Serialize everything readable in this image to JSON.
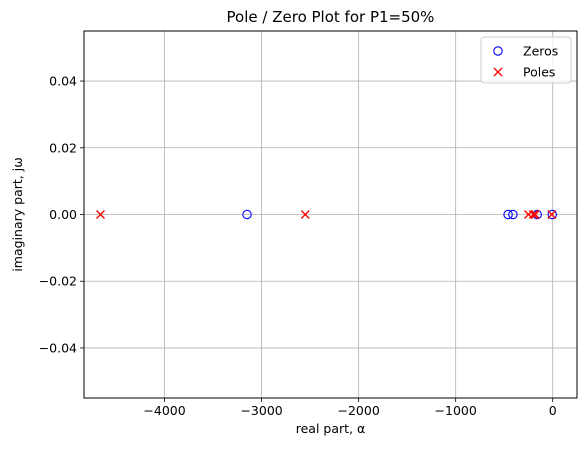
{
  "chart_data": {
    "type": "scatter",
    "title": "Pole / Zero Plot for P1=50%",
    "xlabel": "real part, α",
    "ylabel": "imaginary part, jω",
    "xlim": [
      -4830,
      250
    ],
    "ylim": [
      -0.055,
      0.055
    ],
    "x_ticks": [
      -4000,
      -3000,
      -2000,
      -1000,
      0
    ],
    "x_tick_labels": [
      "−4000",
      "−3000",
      "−2000",
      "−1000",
      "0"
    ],
    "y_ticks": [
      0.04,
      0.02,
      0.0,
      -0.02,
      -0.04
    ],
    "y_tick_labels": [
      "0.04",
      "0.02",
      "0.00",
      "−0.02",
      "−0.04"
    ],
    "grid": true,
    "legend_position": "top-right",
    "series": [
      {
        "name": "Zeros",
        "marker": "circle-open",
        "color": "#0000ff",
        "x": [
          -3150,
          -460,
          -410,
          -160,
          -5
        ],
        "y": [
          0,
          0,
          0,
          0,
          0
        ]
      },
      {
        "name": "Poles",
        "marker": "x",
        "color": "#ff0000",
        "x": [
          -4660,
          -2550,
          -250,
          -200,
          -180,
          -10
        ],
        "y": [
          0,
          0,
          0,
          0,
          0,
          0
        ]
      }
    ]
  }
}
